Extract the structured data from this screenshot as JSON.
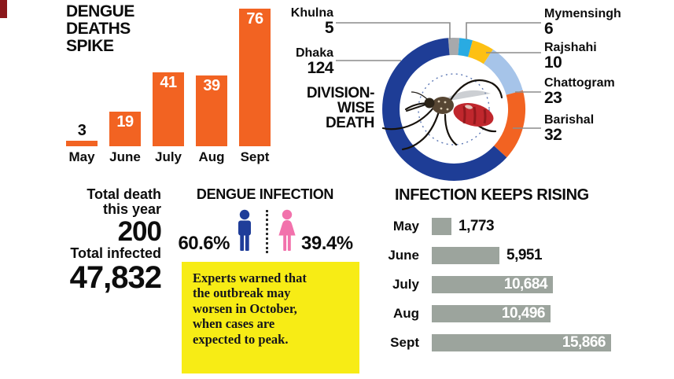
{
  "corner_mark_color": "#8B171B",
  "chart_data": [
    {
      "id": "dengue-deaths",
      "type": "bar",
      "title": "DENGUE DEATHS SPIKE",
      "categories": [
        "May",
        "June",
        "July",
        "Aug",
        "Sept"
      ],
      "values": [
        3,
        19,
        41,
        39,
        76
      ],
      "value_labels": [
        "3",
        "19",
        "41",
        "39",
        "76"
      ],
      "bar_color": "#F26322",
      "ylim": [
        0,
        80
      ],
      "grid": false,
      "legend": "none"
    },
    {
      "id": "division-wise-death",
      "type": "pie",
      "title": "DIVISION-WISE DEATH",
      "title_lines": [
        "DIVISION-",
        "WISE",
        "DEATH"
      ],
      "total": 200,
      "segments": [
        {
          "label": "Khulna",
          "value": 5,
          "display": "5",
          "color": "#A7A9AC"
        },
        {
          "label": "Mymensingh",
          "value": 6,
          "display": "6",
          "color": "#29ABE2"
        },
        {
          "label": "Rajshahi",
          "value": 10,
          "display": "10",
          "color": "#FDC013"
        },
        {
          "label": "Chattogram",
          "value": 23,
          "display": "23",
          "color": "#A6C4E9"
        },
        {
          "label": "Barishal",
          "value": 32,
          "display": "32",
          "color": "#F26322"
        },
        {
          "label": "Dhaka",
          "value": 124,
          "display": "124",
          "color": "#1E3D96"
        }
      ]
    },
    {
      "id": "infection-rising",
      "type": "bar",
      "orientation": "horizontal",
      "title": "INFECTION KEEPS RISING",
      "categories": [
        "May",
        "June",
        "July",
        "Aug",
        "Sept"
      ],
      "values": [
        1773,
        5951,
        10684,
        10496,
        15866
      ],
      "value_labels": [
        "1,773",
        "5,951",
        "10,684",
        "10,496",
        "15,866"
      ],
      "bar_color": "#9CA49D",
      "xlim": [
        0,
        16000
      ],
      "grid": false,
      "legend": "none"
    }
  ],
  "stats": {
    "total_death_label_1": "Total death",
    "total_death_label_2": "this year",
    "total_death_value": "200",
    "total_infected_label": "Total infected",
    "total_infected_value": "47,832"
  },
  "infection_split": {
    "title": "DENGUE INFECTION",
    "male_pct": "60.6%",
    "female_pct": "39.4%",
    "male_color": "#1F3D99",
    "female_color": "#F272AC"
  },
  "note": {
    "text": "Experts warned that the outbreak may worsen in October, when cases are expected to peak.",
    "bg": "#F7EC15"
  }
}
